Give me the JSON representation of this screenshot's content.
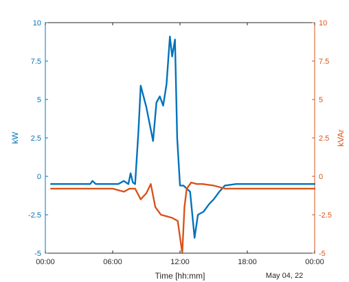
{
  "chart_data": {
    "type": "line",
    "title": "",
    "xlabel": "Time [hh:mm]",
    "date_label": "May 04, 22",
    "x_ticks": [
      "00:00",
      "06:00",
      "12:00",
      "18:00",
      "00:00"
    ],
    "xlim_hours": [
      0,
      24
    ],
    "left_axis": {
      "label": "kW",
      "ylim": [
        -5,
        10
      ],
      "ticks": [
        "-5",
        "-2.5",
        "0",
        "2.5",
        "5",
        "7.5",
        "10"
      ],
      "color": "#0072bd"
    },
    "right_axis": {
      "label": "kVAr",
      "ylim": [
        -5,
        10
      ],
      "ticks": [
        "-5",
        "-2.5",
        "0",
        "2.5",
        "5",
        "7.5",
        "10"
      ],
      "color": "#d95319"
    },
    "series": [
      {
        "axis": "left",
        "color": "#0072bd",
        "x": [
          0.5,
          4.0,
          4.2,
          4.5,
          6.5,
          7.0,
          7.4,
          7.6,
          7.8,
          8.0,
          8.3,
          8.5,
          9.0,
          9.6,
          9.9,
          10.2,
          10.5,
          10.8,
          11.1,
          11.3,
          11.55,
          11.75,
          12.0,
          12.3,
          12.9,
          13.3,
          13.6,
          14.1,
          14.6,
          15.0,
          15.5,
          16.0,
          17.0,
          20.0,
          24.0
        ],
        "y": [
          -0.5,
          -0.5,
          -0.3,
          -0.5,
          -0.5,
          -0.3,
          -0.5,
          0.2,
          -0.4,
          -0.5,
          3.0,
          5.9,
          4.5,
          2.3,
          4.8,
          5.2,
          4.6,
          6.0,
          9.1,
          7.8,
          8.9,
          2.5,
          -0.6,
          -0.6,
          -1.0,
          -4.0,
          -2.5,
          -2.3,
          -1.8,
          -1.5,
          -1.0,
          -0.6,
          -0.5,
          -0.5,
          -0.5
        ]
      },
      {
        "axis": "right",
        "color": "#d95319",
        "x": [
          0.5,
          6.0,
          6.5,
          7.0,
          7.5,
          8.0,
          8.5,
          9.0,
          9.4,
          9.8,
          10.3,
          10.8,
          11.3,
          11.8,
          12.2,
          12.4,
          12.6,
          13.0,
          13.5,
          14.0,
          15.0,
          16.0,
          18.0,
          24.0
        ],
        "y": [
          -0.8,
          -0.8,
          -0.9,
          -1.0,
          -0.8,
          -0.8,
          -1.5,
          -1.1,
          -0.5,
          -2.0,
          -2.5,
          -2.6,
          -2.7,
          -2.9,
          -5.0,
          -2.0,
          -0.8,
          -0.4,
          -0.5,
          -0.5,
          -0.6,
          -0.8,
          -0.8,
          -0.8
        ]
      }
    ]
  }
}
